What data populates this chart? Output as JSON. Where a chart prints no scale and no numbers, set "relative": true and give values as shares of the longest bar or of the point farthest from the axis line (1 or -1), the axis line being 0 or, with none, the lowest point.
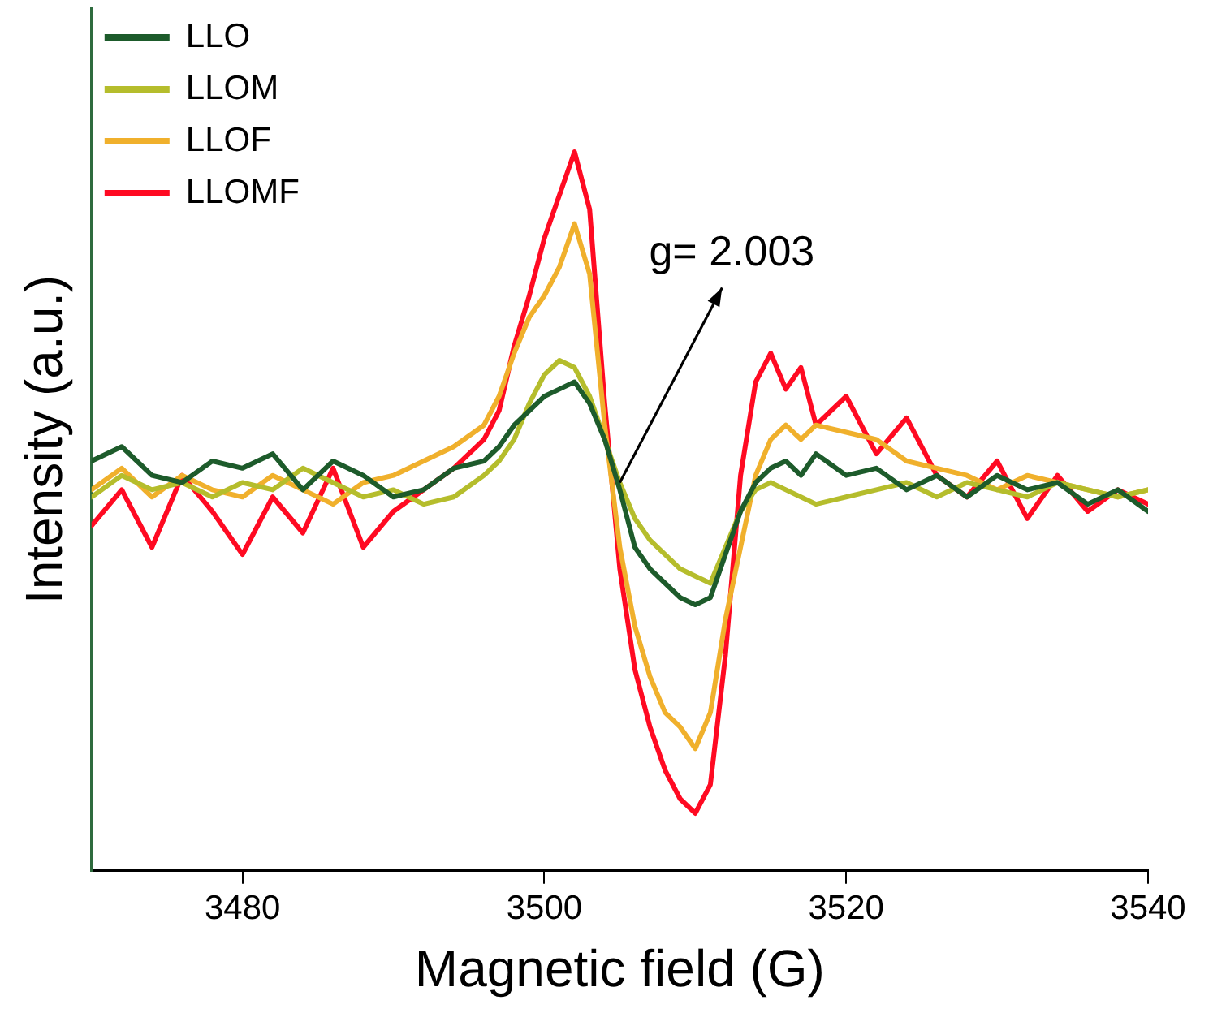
{
  "chart_data": {
    "type": "line",
    "xlabel": "Magnetic field (G)",
    "ylabel": "Intensity (a.u.)",
    "relative": true,
    "x": [
      3470,
      3472,
      3474,
      3476,
      3478,
      3480,
      3482,
      3484,
      3486,
      3488,
      3490,
      3492,
      3494,
      3496,
      3497,
      3498,
      3499,
      3500,
      3501,
      3502,
      3503,
      3504,
      3505,
      3506,
      3507,
      3508,
      3509,
      3510,
      3511,
      3512,
      3513,
      3514,
      3515,
      3516,
      3517,
      3518,
      3520,
      3522,
      3524,
      3526,
      3528,
      3530,
      3532,
      3534,
      3536,
      3538,
      3540
    ],
    "xlim": [
      3470,
      3540
    ],
    "xticks": [
      3480,
      3500,
      3520,
      3540
    ],
    "series": [
      {
        "name": "LLO",
        "color": "#1d5b2b",
        "values": [
          0.57,
          0.59,
          0.55,
          0.54,
          0.57,
          0.56,
          0.58,
          0.53,
          0.57,
          0.55,
          0.52,
          0.53,
          0.56,
          0.57,
          0.59,
          0.62,
          0.64,
          0.66,
          0.67,
          0.68,
          0.65,
          0.6,
          0.53,
          0.45,
          0.42,
          0.4,
          0.38,
          0.37,
          0.38,
          0.44,
          0.5,
          0.54,
          0.56,
          0.57,
          0.55,
          0.58,
          0.55,
          0.56,
          0.53,
          0.55,
          0.52,
          0.55,
          0.53,
          0.54,
          0.51,
          0.53,
          0.5
        ]
      },
      {
        "name": "LLOM",
        "color": "#b5bd2c",
        "values": [
          0.52,
          0.55,
          0.53,
          0.54,
          0.52,
          0.54,
          0.53,
          0.56,
          0.54,
          0.52,
          0.53,
          0.51,
          0.52,
          0.55,
          0.57,
          0.6,
          0.65,
          0.69,
          0.71,
          0.7,
          0.66,
          0.6,
          0.54,
          0.49,
          0.46,
          0.44,
          0.42,
          0.41,
          0.4,
          0.45,
          0.5,
          0.53,
          0.54,
          0.53,
          0.52,
          0.51,
          0.52,
          0.53,
          0.54,
          0.52,
          0.54,
          0.53,
          0.52,
          0.54,
          0.53,
          0.52,
          0.53
        ]
      },
      {
        "name": "LLOF",
        "color": "#f0b02c",
        "values": [
          0.53,
          0.56,
          0.52,
          0.55,
          0.53,
          0.52,
          0.55,
          0.53,
          0.51,
          0.54,
          0.55,
          0.57,
          0.59,
          0.62,
          0.66,
          0.72,
          0.77,
          0.8,
          0.84,
          0.9,
          0.83,
          0.62,
          0.45,
          0.34,
          0.27,
          0.22,
          0.2,
          0.17,
          0.22,
          0.35,
          0.45,
          0.55,
          0.6,
          0.62,
          0.6,
          0.62,
          0.61,
          0.6,
          0.57,
          0.56,
          0.55,
          0.53,
          0.55,
          0.54,
          0.53,
          0.52,
          0.53
        ]
      },
      {
        "name": "LLOMF",
        "color": "#ff0a22",
        "values": [
          0.48,
          0.53,
          0.45,
          0.55,
          0.5,
          0.44,
          0.52,
          0.47,
          0.56,
          0.45,
          0.5,
          0.53,
          0.56,
          0.6,
          0.64,
          0.73,
          0.8,
          0.88,
          0.94,
          1.0,
          0.92,
          0.65,
          0.42,
          0.28,
          0.2,
          0.14,
          0.1,
          0.08,
          0.12,
          0.3,
          0.55,
          0.68,
          0.72,
          0.67,
          0.7,
          0.62,
          0.66,
          0.58,
          0.63,
          0.55,
          0.52,
          0.57,
          0.49,
          0.55,
          0.5,
          0.53,
          0.51
        ]
      }
    ],
    "annotations": [
      {
        "text": "g= 2.003",
        "x": 3505,
        "y": 0.54
      }
    ],
    "legend": "top left",
    "grid": false,
    "marker": "none",
    "line_style": "solid"
  }
}
